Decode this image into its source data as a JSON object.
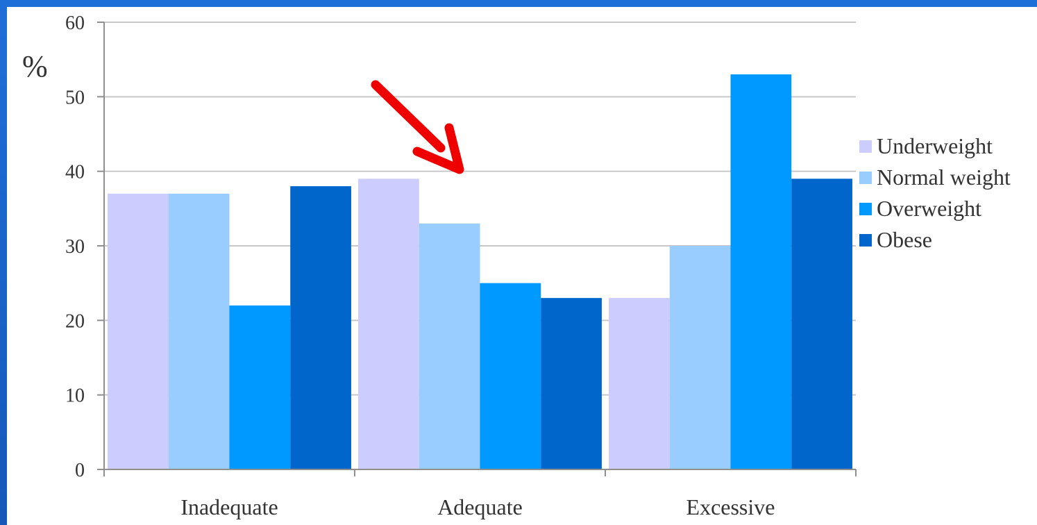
{
  "colors": {
    "frame": "#1b63c6",
    "panel": "#ffffff",
    "grid": "#c8c8c8",
    "axis": "#8f8f8f",
    "arrow": "#ee0000"
  },
  "chart_data": {
    "type": "bar",
    "categories": [
      "Inadequate",
      "Adequate",
      "Excessive"
    ],
    "series": [
      {
        "name": "Underweight",
        "color": "#ccccff",
        "values": [
          37,
          39,
          23
        ]
      },
      {
        "name": "Normal weight",
        "color": "#99ccff",
        "values": [
          37,
          33,
          30
        ]
      },
      {
        "name": "Overweight",
        "color": "#0099ff",
        "values": [
          22,
          25,
          53
        ]
      },
      {
        "name": "Obese",
        "color": "#0066cc",
        "values": [
          38,
          23,
          39
        ]
      }
    ],
    "ylabel": "%",
    "ylim": [
      0,
      60
    ],
    "yticks": [
      0,
      10,
      20,
      30,
      40,
      50,
      60
    ],
    "grid": true,
    "legend_position": "right",
    "annotation": "red arrow pointing to Adequate group"
  }
}
